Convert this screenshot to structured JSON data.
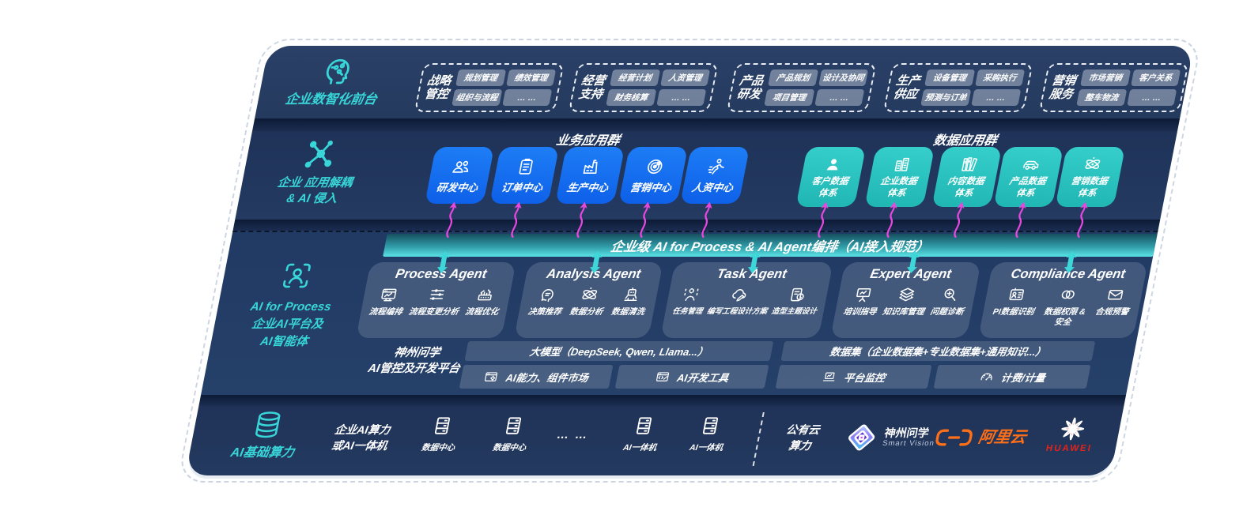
{
  "front_office": {
    "label": "企业数智化前台",
    "icon": "head-circuit-icon",
    "groups": [
      {
        "title": [
          "战略",
          "管控"
        ],
        "items": [
          "规划管理",
          "绩效管理",
          "组织与流程",
          "… …"
        ]
      },
      {
        "title": [
          "经营",
          "支持"
        ],
        "items": [
          "经营计划",
          "人资管理",
          "财务核算",
          "… …"
        ]
      },
      {
        "title": [
          "产品",
          "研发"
        ],
        "items": [
          "产品规划",
          "设计及协同",
          "项目管理",
          "… …"
        ]
      },
      {
        "title": [
          "生产",
          "供应"
        ],
        "items": [
          "设备管理",
          "采购执行",
          "预测与订单",
          "… …"
        ]
      },
      {
        "title": [
          "营销",
          "服务"
        ],
        "items": [
          "市场营销",
          "客户关系",
          "整车物流",
          "… …"
        ]
      }
    ]
  },
  "app_layer": {
    "label_lines": [
      "企业 应用解耦",
      "& AI 侵入"
    ],
    "icon": "molecule-icon",
    "business": {
      "title": "业务应用群",
      "items": [
        {
          "label": [
            "研发中心"
          ],
          "icon": "team-icon"
        },
        {
          "label": [
            "订单中心"
          ],
          "icon": "clipboard-icon"
        },
        {
          "label": [
            "生产中心"
          ],
          "icon": "factory-icon"
        },
        {
          "label": [
            "营销中心"
          ],
          "icon": "target-icon"
        },
        {
          "label": [
            "人资中心"
          ],
          "icon": "person-run-icon"
        }
      ]
    },
    "data": {
      "title": "数据应用群",
      "items": [
        {
          "label": [
            "客户数据",
            "体系"
          ],
          "icon": "person-icon"
        },
        {
          "label": [
            "企业数据",
            "体系"
          ],
          "icon": "buildings-icon"
        },
        {
          "label": [
            "内容数据",
            "体系"
          ],
          "icon": "books-icon"
        },
        {
          "label": [
            "产品数据",
            "体系"
          ],
          "icon": "car-icon"
        },
        {
          "label": [
            "营销数据",
            "体系"
          ],
          "icon": "atom-icon"
        }
      ]
    }
  },
  "ai_layer": {
    "label_lines": [
      "AI for Process",
      "企业AI平台及",
      "AI智能体"
    ],
    "icon": "scan-person-icon",
    "banner": "企业级 AI for Process & AI Agent编排（AI接入规范）",
    "agents": [
      {
        "title": "Process Agent",
        "items": [
          {
            "label": [
              "流程编排"
            ],
            "icon": "flow-monitor-icon"
          },
          {
            "label": [
              "流程变更分析"
            ],
            "icon": "sliders-icon"
          },
          {
            "label": [
              "流程优化"
            ],
            "icon": "machine-icon"
          }
        ]
      },
      {
        "title": "Analysis Agent",
        "items": [
          {
            "label": [
              "决策推荐"
            ],
            "icon": "head-chat-icon"
          },
          {
            "label": [
              "数据分析"
            ],
            "icon": "atom-icon"
          },
          {
            "label": [
              "数据清洗"
            ],
            "icon": "robot-icon"
          }
        ]
      },
      {
        "title": "Task Agent",
        "items": [
          {
            "label": [
              "任务管理"
            ],
            "icon": "task-person-icon"
          },
          {
            "label": [
              "编写工程设计方案"
            ],
            "icon": "cloud-pen-icon"
          },
          {
            "label": [
              "造型主题设计"
            ],
            "icon": "clipboard-clock-icon"
          }
        ]
      },
      {
        "title": "Expert Agent",
        "items": [
          {
            "label": [
              "培训指导"
            ],
            "icon": "training-icon"
          },
          {
            "label": [
              "知识库管理"
            ],
            "icon": "layers-icon"
          },
          {
            "label": [
              "问题诊断"
            ],
            "icon": "diagnose-icon"
          }
        ]
      },
      {
        "title": "Compliance Agent",
        "items": [
          {
            "label": [
              "PI数据识别"
            ],
            "icon": "id-card-icon"
          },
          {
            "label": [
              "数据权限 &",
              "安全"
            ],
            "icon": "rings-icon"
          },
          {
            "label": [
              "合规预警"
            ],
            "icon": "mail-alert-icon"
          }
        ]
      }
    ],
    "platform": {
      "label_lines": [
        "神州问学",
        "AI管控及开发平台"
      ],
      "model_bar": "大模型（DeepSeek, Qwen, Llama...）",
      "dataset_bar": "数据集（企业数据集+专业数据集+通用知识...）",
      "tools": [
        {
          "label": "AI能力、组件市场",
          "icon": "window-gear-icon"
        },
        {
          "label": "AI开发工具",
          "icon": "window-pen-icon"
        },
        {
          "label": "平台监控",
          "icon": "laptop-chart-icon"
        },
        {
          "label": "计费/计量",
          "icon": "gauge-icon"
        }
      ]
    }
  },
  "infra_layer": {
    "label": "AI基础算力",
    "icon": "database-icon",
    "compute_lines": [
      "企业AI算力",
      "或AI一体机"
    ],
    "nodes": [
      {
        "label": "数据中心",
        "icon": "server-icon"
      },
      {
        "label": "数据中心",
        "icon": "server-icon"
      },
      {
        "label": "… …",
        "icon": ""
      },
      {
        "label": "AI一体机",
        "icon": "server-icon"
      },
      {
        "label": "AI一体机",
        "icon": "server-icon"
      }
    ],
    "public_cloud_lines": [
      "公有云",
      "算力"
    ],
    "vendors": [
      {
        "name": "神州问学",
        "sub": "Smart Vision",
        "icon": "smartvision-logo"
      },
      {
        "name": "阿里云",
        "sub": "",
        "icon": "aliyun-logo"
      },
      {
        "name": "HUAWEI",
        "sub": "",
        "icon": "huawei-logo"
      }
    ]
  },
  "colors": {
    "accent_teal": "#38d6d8",
    "box_blue": "#1570ef",
    "box_teal": "#2fc8c5",
    "arrow_magenta": "#e648de",
    "panel_navy": "#243a61",
    "aliyun_orange": "#ff6f17",
    "huawei_red": "#e2231a"
  }
}
